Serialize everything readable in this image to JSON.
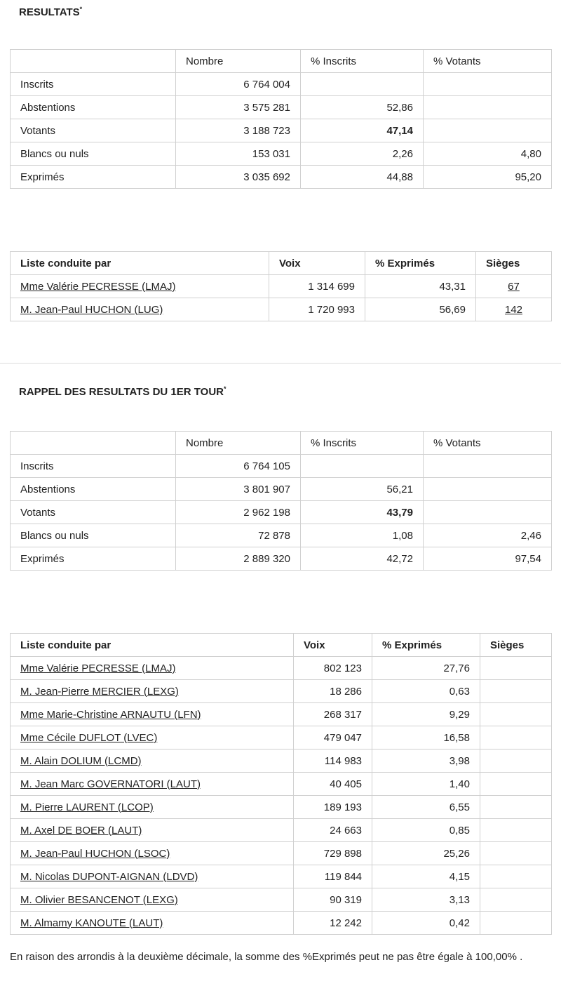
{
  "section1": {
    "title": "RESULTATS",
    "mark": "*",
    "summary": {
      "headers": [
        "",
        "Nombre",
        "% Inscrits",
        "% Votants"
      ],
      "rows": [
        [
          "Inscrits",
          "6 764 004",
          "",
          ""
        ],
        [
          "Abstentions",
          "3 575 281",
          "52,86",
          ""
        ],
        [
          "Votants",
          "3 188 723",
          "47,14",
          ""
        ],
        [
          "Blancs ou nuls",
          "153 031",
          "2,26",
          "4,80"
        ],
        [
          "Exprimés",
          "3 035 692",
          "44,88",
          "95,20"
        ]
      ]
    },
    "lists": {
      "headers": [
        "Liste conduite par",
        "Voix",
        "% Exprimés",
        "Sièges"
      ],
      "rows": [
        [
          "Mme Valérie PECRESSE  (LMAJ)",
          "1 314 699",
          "43,31",
          "67"
        ],
        [
          "M. Jean-Paul HUCHON  (LUG)",
          "1 720 993",
          "56,69",
          "142"
        ]
      ]
    }
  },
  "section2": {
    "title": "RAPPEL DES RESULTATS DU 1ER TOUR",
    "mark": "*",
    "summary": {
      "headers": [
        "",
        "Nombre",
        "% Inscrits",
        "% Votants"
      ],
      "rows": [
        [
          "Inscrits",
          "6 764 105",
          "",
          ""
        ],
        [
          "Abstentions",
          "3 801 907",
          "56,21",
          ""
        ],
        [
          "Votants",
          "2 962 198",
          "43,79",
          ""
        ],
        [
          "Blancs ou nuls",
          "72 878",
          "1,08",
          "2,46"
        ],
        [
          "Exprimés",
          "2 889 320",
          "42,72",
          "97,54"
        ]
      ]
    },
    "lists": {
      "headers": [
        "Liste conduite par",
        "Voix",
        "% Exprimés",
        "Sièges"
      ],
      "rows": [
        [
          "Mme Valérie PECRESSE  (LMAJ)",
          "802 123",
          "27,76",
          ""
        ],
        [
          "M. Jean-Pierre MERCIER  (LEXG)",
          "18 286",
          "0,63",
          ""
        ],
        [
          "Mme Marie-Christine ARNAUTU  (LFN)",
          "268 317",
          "9,29",
          ""
        ],
        [
          "Mme Cécile DUFLOT  (LVEC)",
          "479 047",
          "16,58",
          ""
        ],
        [
          "M. Alain DOLIUM  (LCMD)",
          "114 983",
          "3,98",
          ""
        ],
        [
          "M. Jean Marc GOVERNATORI  (LAUT)",
          "40 405",
          "1,40",
          ""
        ],
        [
          "M. Pierre LAURENT  (LCOP)",
          "189 193",
          "6,55",
          ""
        ],
        [
          "M. Axel DE BOER  (LAUT)",
          "24 663",
          "0,85",
          ""
        ],
        [
          "M. Jean-Paul HUCHON  (LSOC)",
          "729 898",
          "25,26",
          ""
        ],
        [
          "M. Nicolas DUPONT-AIGNAN  (LDVD)",
          "119 844",
          "4,15",
          ""
        ],
        [
          "M. Olivier BESANCENOT  (LEXG)",
          "90 319",
          "3,13",
          ""
        ],
        [
          "M. Almamy KANOUTE  (LAUT)",
          "12 242",
          "0,42",
          ""
        ]
      ]
    }
  },
  "note": "En raison des arrondis à la deuxième décimale, la somme des %Exprimés peut ne pas être égale à 100,00% ."
}
